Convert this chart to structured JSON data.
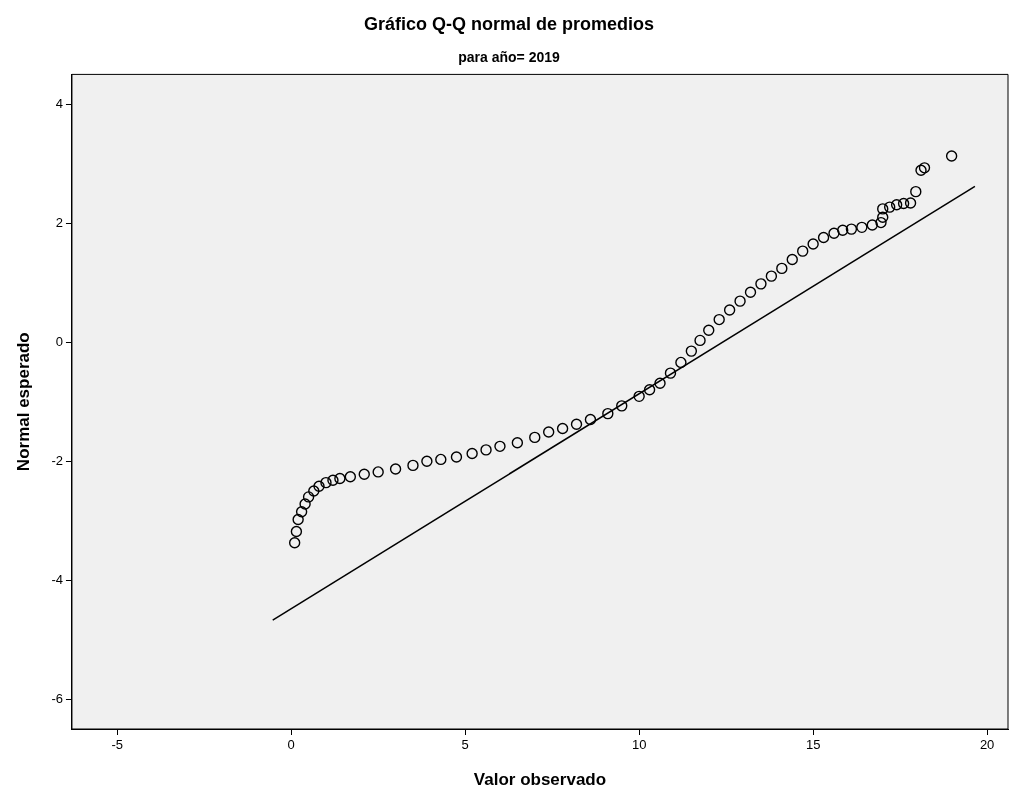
{
  "chart_data": {
    "type": "scatter",
    "title": "Gráfico Q-Q normal de promedios",
    "subtitle": "para año= 2019",
    "xlabel": "Valor observado",
    "ylabel": "Normal esperado",
    "xlim": [
      -6.3,
      20.6
    ],
    "xticks": [
      -5,
      0,
      5,
      10,
      15,
      20
    ],
    "ylim": [
      -6.5,
      4.5
    ],
    "yticks": [
      -6,
      -4,
      -2,
      0,
      2,
      4
    ],
    "grid": false,
    "legend": false,
    "marker": "circle",
    "series": [
      {
        "color": "#000000",
        "x": [
          0.1,
          0.15,
          0.2,
          0.3,
          0.4,
          0.5,
          0.65,
          0.8,
          1.0,
          1.2,
          1.4,
          1.7,
          2.1,
          2.5,
          3.0,
          3.5,
          3.9,
          4.3,
          4.75,
          5.2,
          5.6,
          6.0,
          6.5,
          7.0,
          7.4,
          7.8,
          8.2,
          8.6,
          9.1,
          9.5,
          10.0,
          10.3,
          10.6,
          10.9,
          11.2,
          11.5,
          11.75,
          12.0,
          12.3,
          12.6,
          12.9,
          13.2,
          13.5,
          13.8,
          14.1,
          14.4,
          14.7,
          15.0,
          15.3,
          15.6,
          15.85,
          16.1,
          16.4,
          16.7,
          16.95,
          17.0,
          17.0,
          17.2,
          17.4,
          17.6,
          17.8,
          17.95,
          18.1,
          18.2,
          18.98
        ],
        "values": [
          -3.37,
          -3.18,
          -2.98,
          -2.85,
          -2.72,
          -2.6,
          -2.5,
          -2.42,
          -2.36,
          -2.32,
          -2.29,
          -2.26,
          -2.22,
          -2.18,
          -2.13,
          -2.07,
          -2.0,
          -1.97,
          -1.93,
          -1.87,
          -1.81,
          -1.75,
          -1.69,
          -1.6,
          -1.51,
          -1.45,
          -1.38,
          -1.3,
          -1.2,
          -1.07,
          -0.91,
          -0.8,
          -0.69,
          -0.52,
          -0.34,
          -0.15,
          0.03,
          0.2,
          0.38,
          0.54,
          0.69,
          0.84,
          0.98,
          1.11,
          1.24,
          1.39,
          1.53,
          1.65,
          1.76,
          1.83,
          1.88,
          1.9,
          1.93,
          1.97,
          2.01,
          2.1,
          2.24,
          2.27,
          2.31,
          2.33,
          2.34,
          2.53,
          2.89,
          2.93,
          3.13
        ]
      },
      {
        "type": "line",
        "color": "#000000",
        "marker": "none",
        "x": [
          -0.53,
          19.65
        ],
        "values": [
          -4.67,
          2.62
        ]
      }
    ]
  }
}
